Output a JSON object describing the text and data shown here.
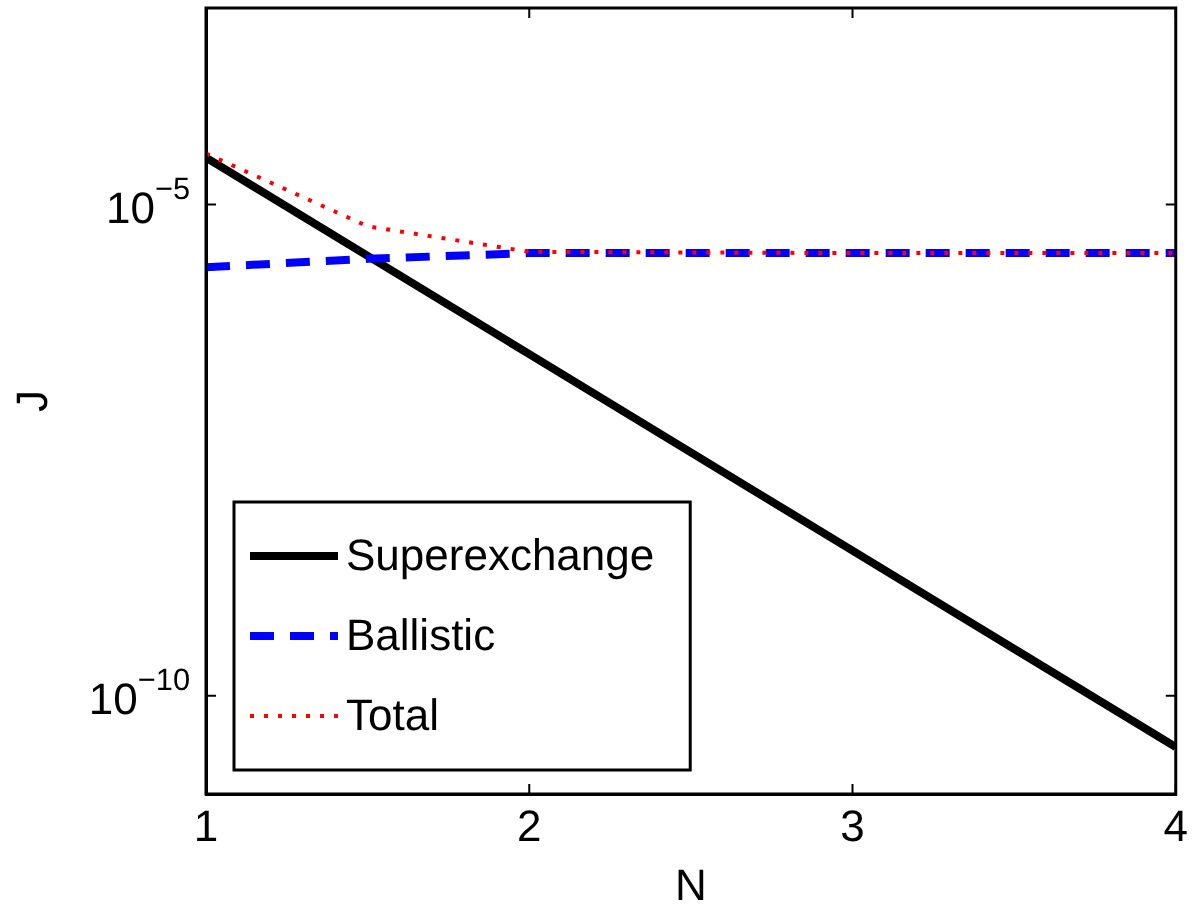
{
  "chart_data": {
    "type": "line",
    "xlabel": "N",
    "ylabel": "J",
    "log": "y",
    "xlim": [
      1,
      4
    ],
    "xticks": [
      1,
      2,
      3,
      4
    ],
    "ylim": [
      1e-11,
      0.001
    ],
    "yticks": [
      {
        "value": 1e-10,
        "label": "10$^{−10}$"
      },
      {
        "value": 1e-05,
        "label": "10$^{−5}$"
      }
    ],
    "grid": false,
    "legend": "bottom left",
    "marker": "none",
    "series": [
      {
        "name": "Superexchange",
        "color": "#000000",
        "line_style": "solid",
        "x": [
          1,
          1.5,
          2,
          3,
          4
        ],
        "values": [
          3e-05,
          3e-06,
          3e-07,
          3e-09,
          3e-11
        ]
      },
      {
        "name": "Ballistic",
        "color": "#0000ff",
        "line_style": "dashed",
        "x": [
          1,
          1.5,
          2,
          3,
          4
        ],
        "values": [
          2.3e-06,
          2.8e-06,
          3.2e-06,
          3.2e-06,
          3.2e-06
        ]
      },
      {
        "name": "Total",
        "color": "#ff0000",
        "line_style": "dotted",
        "x": [
          1,
          1.5,
          2,
          3,
          4
        ],
        "values": [
          3.3e-05,
          6e-06,
          3.3e-06,
          3.2e-06,
          3.2e-06
        ]
      }
    ]
  }
}
